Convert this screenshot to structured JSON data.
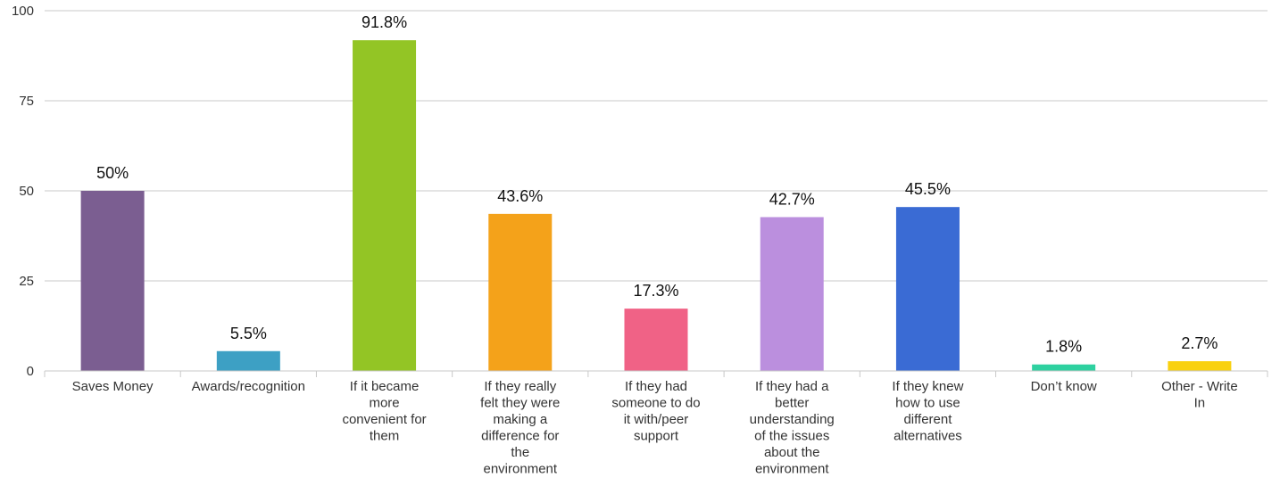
{
  "chart_data": {
    "type": "bar",
    "categories": [
      "Saves Money",
      "Awards/recognition",
      "If it became more convenient for them",
      "If they really felt they were making a difference for the environment",
      "If they had someone to do it with/peer support",
      "If they had a better understanding of the issues about the environment",
      "If they knew how to use different alternatives",
      "Don’t know",
      "Other - Write In"
    ],
    "category_lines": [
      [
        "Saves Money"
      ],
      [
        "Awards/recognition"
      ],
      [
        "If it became",
        "more",
        "convenient for",
        "them"
      ],
      [
        "If they really",
        "felt they were",
        "making a",
        "difference for",
        "the",
        "environment"
      ],
      [
        "If they had",
        "someone to do",
        "it with/peer",
        "support"
      ],
      [
        "If they had a",
        "better",
        "understanding",
        "of the issues",
        "about the",
        "environment"
      ],
      [
        "If they knew",
        "how to use",
        "different",
        "alternatives"
      ],
      [
        "Don’t know"
      ],
      [
        "Other - Write",
        "In"
      ]
    ],
    "values": [
      50,
      5.5,
      91.8,
      43.6,
      17.3,
      42.7,
      45.5,
      1.8,
      2.7
    ],
    "data_labels": [
      "50%",
      "5.5%",
      "91.8%",
      "43.6%",
      "17.3%",
      "42.7%",
      "45.5%",
      "1.8%",
      "2.7%"
    ],
    "colors": [
      "#7b5e91",
      "#3da0c4",
      "#93c525",
      "#f4a21a",
      "#f06286",
      "#bb8fde",
      "#3a6bd4",
      "#2ed1a0",
      "#f9d10f"
    ],
    "ylim": [
      0,
      100
    ],
    "yticks": [
      0,
      25,
      50,
      75,
      100
    ],
    "ytick_labels": [
      "0",
      "25",
      "50",
      "75",
      "100"
    ],
    "grid": true,
    "title": "",
    "xlabel": "",
    "ylabel": ""
  }
}
